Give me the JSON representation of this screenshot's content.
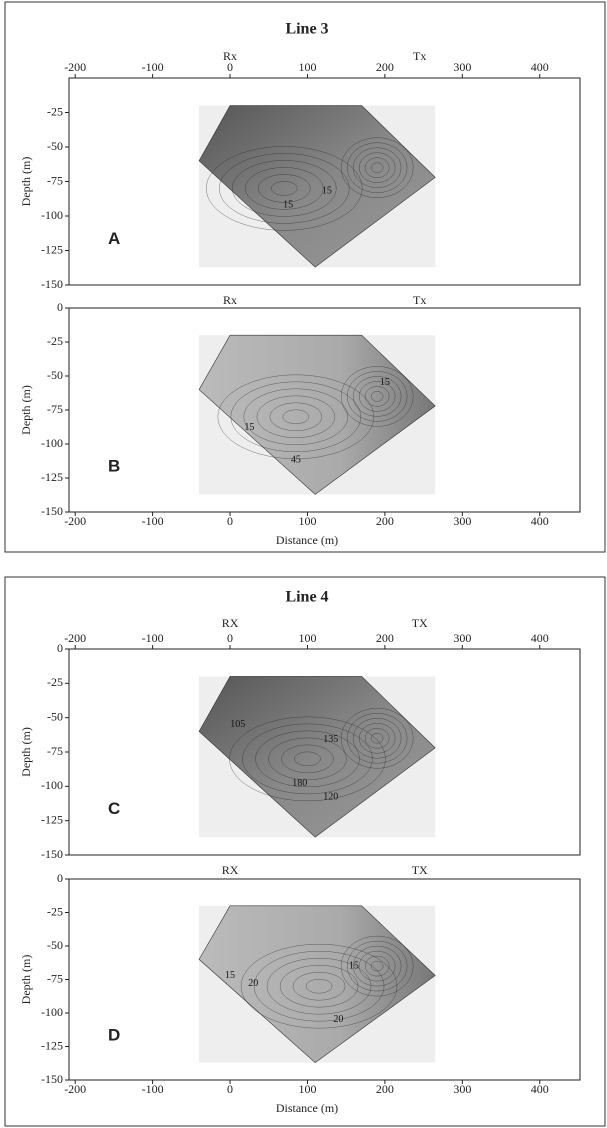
{
  "chart_data": [
    {
      "type": "contour",
      "title": "Line 3",
      "label": "A",
      "ylabel": "Depth (m)",
      "xaxis": "top",
      "xlim": [
        -208,
        452
      ],
      "ylim": [
        -150,
        0
      ],
      "xticks": [
        -200,
        -100,
        0,
        100,
        200,
        300,
        400
      ],
      "yticks": [
        -25,
        -50,
        -75,
        -100,
        -125,
        -150
      ],
      "markers": [
        {
          "text": "Rx",
          "x": 0
        },
        {
          "text": "Tx",
          "x": 245
        }
      ],
      "annotations": [
        {
          "text": "15",
          "x": 75,
          "y": -92
        },
        {
          "text": "15",
          "x": 125,
          "y": -82
        }
      ]
    },
    {
      "type": "contour",
      "label": "B",
      "ylabel": "Depth (m)",
      "xlabel": "Distance (m)",
      "xaxis": "bottom",
      "xlim": [
        -208,
        452
      ],
      "ylim": [
        -150,
        0
      ],
      "xticks": [
        -200,
        -100,
        0,
        100,
        200,
        300,
        400
      ],
      "yticks": [
        0,
        -25,
        -50,
        -75,
        -100,
        -125,
        -150
      ],
      "markers": [
        {
          "text": "Rx",
          "x": 0
        },
        {
          "text": "Tx",
          "x": 245
        }
      ],
      "annotations": [
        {
          "text": "15",
          "x": 25,
          "y": -88
        },
        {
          "text": "45",
          "x": 85,
          "y": -112
        },
        {
          "text": "15",
          "x": 200,
          "y": -55
        }
      ]
    },
    {
      "type": "contour",
      "title": "Line 4",
      "label": "C",
      "ylabel": "Depth (m)",
      "xaxis": "top",
      "xlim": [
        -208,
        452
      ],
      "ylim": [
        -150,
        0
      ],
      "xticks": [
        -200,
        -100,
        0,
        100,
        200,
        300,
        400
      ],
      "yticks": [
        0,
        -25,
        -50,
        -75,
        -100,
        -125,
        -150
      ],
      "markers": [
        {
          "text": "RX",
          "x": 0
        },
        {
          "text": "TX",
          "x": 245
        }
      ],
      "annotations": [
        {
          "text": "105",
          "x": 10,
          "y": -55
        },
        {
          "text": "135",
          "x": 130,
          "y": -66
        },
        {
          "text": "180",
          "x": 90,
          "y": -98
        },
        {
          "text": "120",
          "x": 130,
          "y": -108
        }
      ]
    },
    {
      "type": "contour",
      "label": "D",
      "ylabel": "Depth (m)",
      "xlabel": "Distance (m)",
      "xaxis": "bottom",
      "xlim": [
        -208,
        452
      ],
      "ylim": [
        -150,
        0
      ],
      "xticks": [
        -200,
        -100,
        0,
        100,
        200,
        300,
        400
      ],
      "yticks": [
        0,
        -25,
        -50,
        -75,
        -100,
        -125,
        -150
      ],
      "markers": [
        {
          "text": "RX",
          "x": 0
        },
        {
          "text": "TX",
          "x": 245
        }
      ],
      "annotations": [
        {
          "text": "15",
          "x": 0,
          "y": -72
        },
        {
          "text": "20",
          "x": 30,
          "y": -78
        },
        {
          "text": "15",
          "x": 160,
          "y": -65
        },
        {
          "text": "20",
          "x": 140,
          "y": -105
        }
      ]
    }
  ]
}
